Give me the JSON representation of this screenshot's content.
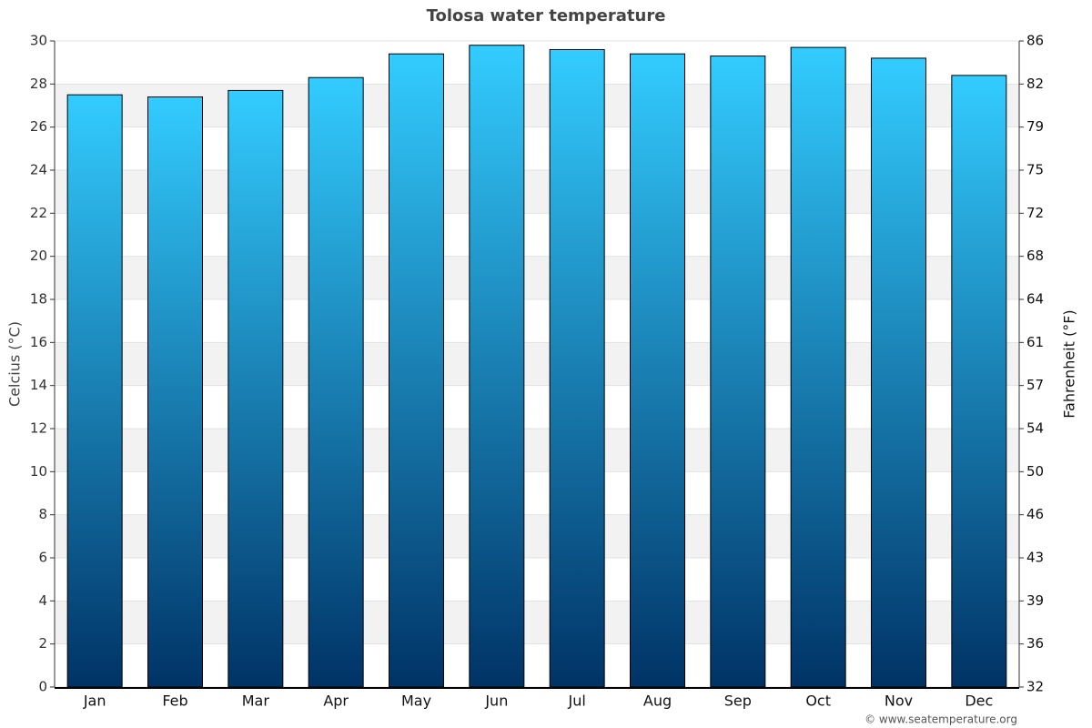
{
  "chart_data": {
    "type": "bar",
    "title": "Tolosa water temperature",
    "y_label": "Celcius (°C)",
    "y2_label": "Fahrenheit (°F)",
    "credit": "© www.seatemperature.org",
    "categories": [
      "Jan",
      "Feb",
      "Mar",
      "Apr",
      "May",
      "Jun",
      "Jul",
      "Aug",
      "Sep",
      "Oct",
      "Nov",
      "Dec"
    ],
    "values": [
      27.5,
      27.4,
      27.7,
      28.3,
      29.4,
      29.8,
      29.6,
      29.4,
      29.3,
      29.7,
      29.2,
      28.4
    ],
    "gradient": [
      "#33ccff",
      "#003366"
    ],
    "ylim": [
      0,
      30
    ],
    "yticks": [
      0,
      2,
      4,
      6,
      8,
      10,
      12,
      14,
      16,
      18,
      20,
      22,
      24,
      26,
      28,
      30
    ],
    "y2lim": [
      32,
      86
    ],
    "y2ticks": [
      32,
      {
        "value": 35.6,
        "label": "36"
      },
      {
        "value": 39.2,
        "label": "39"
      },
      {
        "value": 42.8,
        "label": "43"
      },
      {
        "value": 46.4,
        "label": "46"
      },
      50,
      {
        "value": 53.6,
        "label": "54"
      },
      {
        "value": 57.2,
        "label": "57"
      },
      {
        "value": 60.8,
        "label": "61"
      },
      {
        "value": 64.4,
        "label": "64"
      },
      68,
      {
        "value": 71.6,
        "label": "72"
      },
      {
        "value": 75.2,
        "label": "75"
      },
      {
        "value": 78.8,
        "label": "79"
      },
      {
        "value": 82.4,
        "label": "82"
      },
      86
    ],
    "grid": true
  }
}
